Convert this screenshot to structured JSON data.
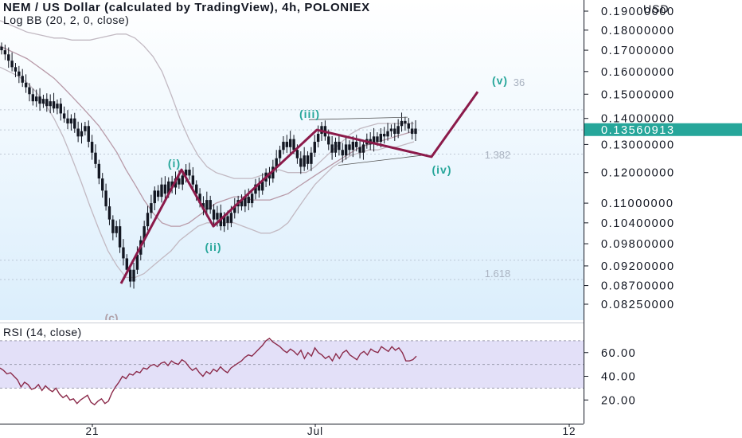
{
  "header": {
    "title": "NEM / US Dollar (calculated by TradingView), 4h, POLONIEX",
    "indicator": "Log BB (20, 2, 0, close)",
    "currency": "USD"
  },
  "rsi": {
    "label": "RSI (14, close)",
    "ticks": [
      "60.00",
      "40.00",
      "20.00"
    ],
    "values": [
      47,
      45,
      42,
      43,
      40,
      37,
      31,
      35,
      33,
      29,
      30,
      33,
      28,
      32,
      29,
      27,
      30,
      25,
      22,
      24,
      20,
      21,
      17,
      20,
      22,
      24,
      18,
      16,
      19,
      21,
      17,
      19,
      26,
      31,
      35,
      40,
      38,
      42,
      41,
      44,
      43,
      47,
      46,
      49,
      50,
      48,
      51,
      52,
      49,
      53,
      51,
      50,
      54,
      52,
      48,
      45,
      47,
      43,
      40,
      44,
      42,
      46,
      44,
      48,
      45,
      43,
      47,
      49,
      51,
      53,
      56,
      58,
      57,
      60,
      63,
      66,
      70,
      72,
      69,
      67,
      65,
      62,
      60,
      63,
      61,
      58,
      62,
      55,
      60,
      57,
      64,
      60,
      58,
      55,
      57,
      53,
      59,
      55,
      60,
      62,
      58,
      56,
      54,
      59,
      61,
      58,
      63,
      61,
      60,
      65,
      63,
      61,
      65,
      62,
      64,
      60,
      53,
      53,
      54,
      57
    ]
  },
  "time_axis": {
    "labels": [
      "21",
      "Jul",
      "12"
    ]
  },
  "chart_data": {
    "type": "candlestick",
    "title": "NEM / US Dollar (calculated by TradingView), 4h, POLONIEX",
    "indicator": "Log BB (20, 2, 0, close)",
    "y_scale": "log",
    "ylim": [
      0.079,
      0.195
    ],
    "y_ticks": [
      "0.19000000",
      "0.18000000",
      "0.17000000",
      "0.16000000",
      "0.15000000",
      "0.14000000",
      "0.13000000",
      "0.12000000",
      "0.11000000",
      "0.10400000",
      "0.09800000",
      "0.09200000",
      "0.08700000",
      "0.08250000"
    ],
    "y_tick_values": [
      0.19,
      0.18,
      0.17,
      0.16,
      0.15,
      0.14,
      0.13,
      0.12,
      0.11,
      0.104,
      0.098,
      0.092,
      0.087,
      0.0825
    ],
    "x_labels": [
      "21",
      "Jul",
      "12"
    ],
    "current_price": "0.13560913",
    "current_price_value": 0.13560913,
    "accent_color": "#26a69a",
    "wave_color": "#8b1a4a",
    "candle_color": "#131722",
    "closes": [
      0.17,
      0.168,
      0.165,
      0.162,
      0.16,
      0.158,
      0.155,
      0.153,
      0.15,
      0.147,
      0.149,
      0.146,
      0.148,
      0.145,
      0.147,
      0.144,
      0.146,
      0.142,
      0.14,
      0.138,
      0.14,
      0.136,
      0.133,
      0.135,
      0.137,
      0.131,
      0.127,
      0.123,
      0.118,
      0.114,
      0.109,
      0.105,
      0.101,
      0.103,
      0.097,
      0.094,
      0.091,
      0.088,
      0.091,
      0.095,
      0.099,
      0.103,
      0.107,
      0.11,
      0.114,
      0.112,
      0.116,
      0.113,
      0.117,
      0.115,
      0.118,
      0.116,
      0.119,
      0.121,
      0.119,
      0.116,
      0.113,
      0.11,
      0.108,
      0.111,
      0.108,
      0.105,
      0.107,
      0.103,
      0.106,
      0.104,
      0.107,
      0.109,
      0.111,
      0.109,
      0.112,
      0.11,
      0.113,
      0.116,
      0.114,
      0.117,
      0.12,
      0.118,
      0.122,
      0.125,
      0.128,
      0.131,
      0.129,
      0.132,
      0.128,
      0.125,
      0.122,
      0.126,
      0.123,
      0.127,
      0.131,
      0.134,
      0.137,
      0.133,
      0.13,
      0.127,
      0.131,
      0.128,
      0.126,
      0.13,
      0.128,
      0.131,
      0.129,
      0.127,
      0.13,
      0.132,
      0.13,
      0.133,
      0.131,
      0.134,
      0.133,
      0.135,
      0.136,
      0.134,
      0.137,
      0.139,
      0.138,
      0.136,
      0.134,
      0.136
    ],
    "series": [
      {
        "name": "Log BB (20, 2, 0, close)",
        "role": "upper",
        "values": [
          0.185,
          0.183,
          0.181,
          0.179,
          0.178,
          0.177,
          0.176,
          0.176,
          0.175,
          0.175,
          0.175,
          0.176,
          0.177,
          0.178,
          0.178,
          0.176,
          0.172,
          0.167,
          0.16,
          0.15,
          0.14,
          0.132,
          0.126,
          0.122,
          0.12,
          0.119,
          0.118,
          0.118,
          0.118,
          0.119,
          0.12,
          0.121,
          0.12,
          0.12,
          0.12,
          0.122,
          0.125,
          0.128,
          0.131,
          0.134,
          0.136,
          0.137,
          0.138,
          0.138,
          0.138,
          0.138,
          0.138
        ]
      },
      {
        "name": "Log BB (20, 2, 0, close)",
        "role": "basis",
        "values": [
          0.172,
          0.17,
          0.168,
          0.166,
          0.163,
          0.16,
          0.157,
          0.153,
          0.149,
          0.145,
          0.141,
          0.137,
          0.132,
          0.127,
          0.121,
          0.116,
          0.111,
          0.107,
          0.104,
          0.103,
          0.103,
          0.104,
          0.106,
          0.108,
          0.11,
          0.111,
          0.112,
          0.112,
          0.111,
          0.111,
          0.111,
          0.112,
          0.113,
          0.115,
          0.117,
          0.119,
          0.121,
          0.123,
          0.125,
          0.127,
          0.129,
          0.13,
          0.131,
          0.132,
          0.133,
          0.134,
          0.135
        ]
      },
      {
        "name": "Log BB (20, 2, 0, close)",
        "role": "lower",
        "values": [
          0.162,
          0.16,
          0.158,
          0.155,
          0.151,
          0.146,
          0.14,
          0.133,
          0.125,
          0.117,
          0.109,
          0.102,
          0.096,
          0.092,
          0.089,
          0.089,
          0.09,
          0.092,
          0.094,
          0.096,
          0.099,
          0.101,
          0.103,
          0.104,
          0.104,
          0.104,
          0.104,
          0.103,
          0.102,
          0.101,
          0.101,
          0.102,
          0.104,
          0.108,
          0.112,
          0.116,
          0.119,
          0.122,
          0.124,
          0.126,
          0.127,
          0.128,
          0.128,
          0.129,
          0.129,
          0.13,
          0.131
        ]
      }
    ],
    "elliott_wave": {
      "labels": [
        "(i)",
        "(ii)",
        "(iii)",
        "(iv)",
        "(v)",
        "(c)"
      ],
      "values": [
        0.0875,
        0.121,
        0.103,
        0.1355,
        0.1255,
        0.151
      ]
    },
    "fib_levels": [
      {
        "label": "1.382",
        "value": 0.1265
      },
      {
        "label": "1.618",
        "value": 0.0885
      },
      {
        "label": "36",
        "value": 0.1555
      }
    ]
  }
}
